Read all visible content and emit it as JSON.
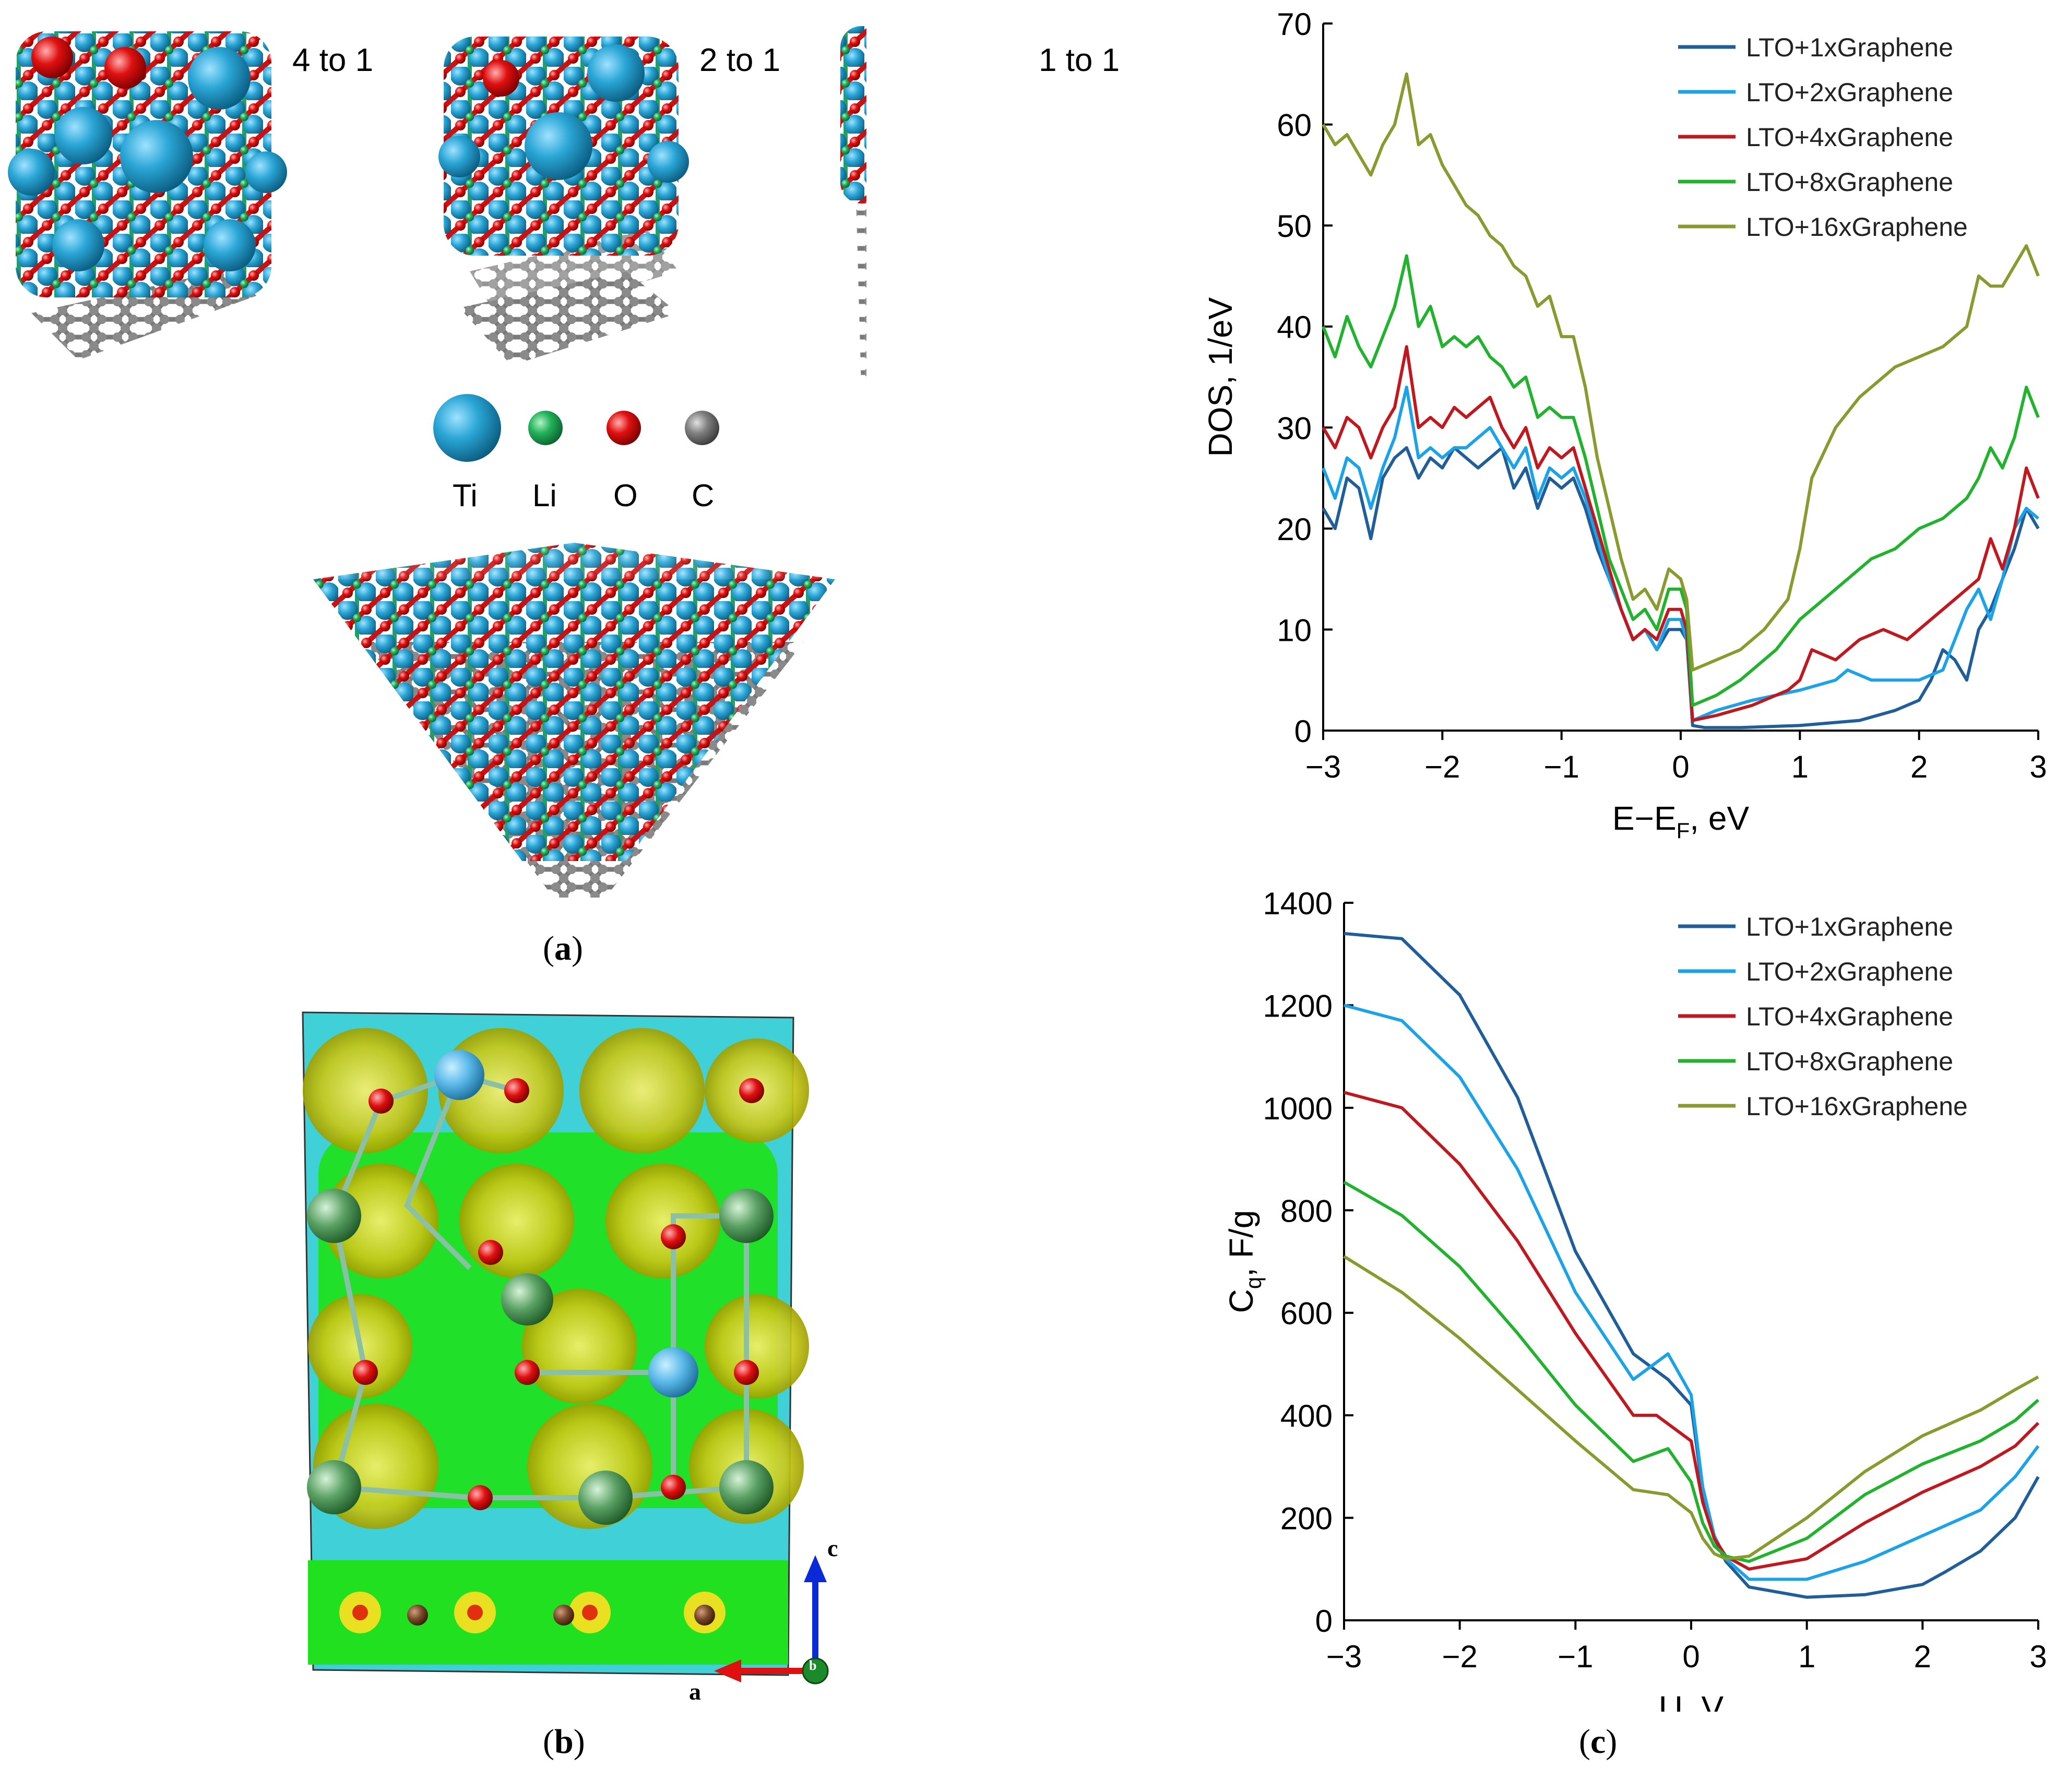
{
  "figure": {
    "panel_a": {
      "caption_prefix": "(",
      "caption_letter": "a",
      "caption_suffix": ")",
      "ratio_labels": [
        "4 to 1",
        "2 to 1",
        "1 to 1"
      ],
      "legend": [
        {
          "symbol": "Ti",
          "color": "#2aa6d6"
        },
        {
          "symbol": "Li",
          "color": "#22b25a"
        },
        {
          "symbol": "O",
          "color": "#e01010"
        },
        {
          "symbol": "C",
          "color": "#808080"
        }
      ]
    },
    "panel_b": {
      "caption_prefix": "(",
      "caption_letter": "b",
      "caption_suffix": ")",
      "axis_a": "a",
      "axis_b": "b",
      "axis_c": "c"
    },
    "panel_c": {
      "caption_prefix": "(",
      "caption_letter": "c",
      "caption_suffix": ")"
    }
  },
  "chart_data": [
    {
      "id": "dos",
      "type": "line",
      "xlabel": "E−E_F, eV",
      "xlabel_main": "E−E",
      "xlabel_sub": "F",
      "xlabel_tail": ", eV",
      "ylabel": "DOS, 1/eV",
      "xlim": [
        -3,
        3
      ],
      "ylim": [
        0,
        70
      ],
      "xticks": [
        -3,
        -2,
        -1,
        0,
        1,
        2,
        3
      ],
      "xtick_labels": [
        "−3",
        "−2",
        "−1",
        "0",
        "1",
        "2",
        "3"
      ],
      "yticks": [
        0,
        10,
        20,
        30,
        40,
        50,
        60,
        70
      ],
      "ytick_labels": [
        "0",
        "10",
        "20",
        "30",
        "40",
        "50",
        "60",
        "70"
      ],
      "legend_position": "top-right",
      "series": [
        {
          "name": "LTO+1xGraphene",
          "color": "#1f5e99",
          "x": [
            -3,
            -2.9,
            -2.8,
            -2.7,
            -2.6,
            -2.5,
            -2.4,
            -2.3,
            -2.2,
            -2.1,
            -2,
            -1.9,
            -1.8,
            -1.7,
            -1.6,
            -1.5,
            -1.4,
            -1.3,
            -1.2,
            -1.1,
            -1,
            -0.9,
            -0.8,
            -0.7,
            -0.6,
            -0.5,
            -0.4,
            -0.3,
            -0.2,
            -0.1,
            0,
            0.05,
            0.1,
            0.2,
            0.5,
            1,
            1.5,
            1.8,
            2,
            2.1,
            2.2,
            2.3,
            2.4,
            2.5,
            2.6,
            2.7,
            2.8,
            2.9,
            3
          ],
          "y": [
            22,
            20,
            25,
            24,
            19,
            25,
            27,
            28,
            25,
            27,
            26,
            28,
            27,
            26,
            27,
            28,
            24,
            26,
            22,
            25,
            24,
            25,
            22,
            18,
            15,
            12,
            9,
            10,
            8,
            10,
            10,
            9,
            0.5,
            0.3,
            0.3,
            0.5,
            1,
            2,
            3,
            5,
            8,
            7,
            5,
            10,
            12,
            15,
            18,
            22,
            20
          ]
        },
        {
          "name": "LTO+2xGraphene",
          "color": "#1aa3e8",
          "x": [
            -3,
            -2.9,
            -2.8,
            -2.7,
            -2.6,
            -2.5,
            -2.4,
            -2.3,
            -2.2,
            -2.1,
            -2,
            -1.9,
            -1.8,
            -1.7,
            -1.6,
            -1.5,
            -1.4,
            -1.3,
            -1.2,
            -1.1,
            -1,
            -0.9,
            -0.8,
            -0.7,
            -0.6,
            -0.5,
            -0.4,
            -0.3,
            -0.2,
            -0.1,
            0,
            0.05,
            0.1,
            0.3,
            0.6,
            1,
            1.3,
            1.4,
            1.6,
            1.8,
            2,
            2.2,
            2.3,
            2.4,
            2.5,
            2.6,
            2.7,
            2.8,
            2.9,
            3
          ],
          "y": [
            26,
            23,
            27,
            26,
            22,
            26,
            29,
            34,
            27,
            28,
            27,
            28,
            28,
            29,
            30,
            28,
            26,
            28,
            23,
            26,
            25,
            26,
            23,
            19,
            15,
            12,
            9,
            10,
            8,
            11,
            11,
            9,
            1,
            2,
            3,
            4,
            5,
            6,
            5,
            5,
            5,
            6,
            9,
            12,
            14,
            11,
            15,
            20,
            22,
            21
          ]
        },
        {
          "name": "LTO+4xGraphene",
          "color": "#c0181e",
          "x": [
            -3,
            -2.9,
            -2.8,
            -2.7,
            -2.6,
            -2.5,
            -2.4,
            -2.3,
            -2.2,
            -2.1,
            -2,
            -1.9,
            -1.8,
            -1.7,
            -1.6,
            -1.5,
            -1.4,
            -1.3,
            -1.2,
            -1.1,
            -1,
            -0.9,
            -0.8,
            -0.7,
            -0.6,
            -0.5,
            -0.4,
            -0.3,
            -0.2,
            -0.1,
            0,
            0.05,
            0.1,
            0.3,
            0.6,
            0.9,
            1,
            1.1,
            1.3,
            1.5,
            1.7,
            1.9,
            2.1,
            2.3,
            2.5,
            2.6,
            2.7,
            2.8,
            2.9,
            3
          ],
          "y": [
            30,
            28,
            31,
            30,
            27,
            30,
            32,
            38,
            30,
            31,
            30,
            32,
            31,
            32,
            33,
            30,
            28,
            30,
            26,
            28,
            27,
            28,
            24,
            20,
            16,
            12,
            9,
            10,
            9,
            12,
            12,
            10,
            1,
            1.5,
            2.5,
            4,
            5,
            8,
            7,
            9,
            10,
            9,
            11,
            13,
            15,
            19,
            16,
            20,
            26,
            23
          ]
        },
        {
          "name": "LTO+8xGraphene",
          "color": "#22b32e",
          "x": [
            -3,
            -2.9,
            -2.8,
            -2.7,
            -2.6,
            -2.5,
            -2.4,
            -2.3,
            -2.2,
            -2.1,
            -2,
            -1.9,
            -1.8,
            -1.7,
            -1.6,
            -1.5,
            -1.4,
            -1.3,
            -1.2,
            -1.1,
            -1,
            -0.9,
            -0.8,
            -0.7,
            -0.6,
            -0.5,
            -0.4,
            -0.3,
            -0.2,
            -0.1,
            0,
            0.05,
            0.1,
            0.3,
            0.5,
            0.8,
            1,
            1.2,
            1.4,
            1.6,
            1.8,
            2,
            2.2,
            2.4,
            2.5,
            2.6,
            2.7,
            2.8,
            2.9,
            3
          ],
          "y": [
            40,
            37,
            41,
            38,
            36,
            39,
            42,
            47,
            40,
            42,
            38,
            39,
            38,
            39,
            37,
            36,
            34,
            35,
            31,
            32,
            31,
            31,
            27,
            22,
            17,
            14,
            11,
            12,
            10,
            14,
            14,
            12,
            2.5,
            3.5,
            5,
            8,
            11,
            13,
            15,
            17,
            18,
            20,
            21,
            23,
            25,
            28,
            26,
            29,
            34,
            31
          ]
        },
        {
          "name": "LTO+16xGraphene",
          "color": "#8a9a2e",
          "x": [
            -3,
            -2.9,
            -2.8,
            -2.7,
            -2.6,
            -2.5,
            -2.4,
            -2.3,
            -2.2,
            -2.1,
            -2,
            -1.9,
            -1.8,
            -1.7,
            -1.6,
            -1.5,
            -1.4,
            -1.3,
            -1.2,
            -1.1,
            -1,
            -0.9,
            -0.8,
            -0.7,
            -0.6,
            -0.5,
            -0.4,
            -0.3,
            -0.2,
            -0.1,
            0,
            0.05,
            0.1,
            0.3,
            0.5,
            0.7,
            0.9,
            1,
            1.1,
            1.3,
            1.5,
            1.8,
            2,
            2.2,
            2.4,
            2.5,
            2.6,
            2.7,
            2.8,
            2.9,
            3
          ],
          "y": [
            60,
            58,
            59,
            57,
            55,
            58,
            60,
            65,
            58,
            59,
            56,
            54,
            52,
            51,
            49,
            48,
            46,
            45,
            42,
            43,
            39,
            39,
            34,
            27,
            22,
            17,
            13,
            14,
            12,
            16,
            15,
            13,
            6,
            7,
            8,
            10,
            13,
            18,
            25,
            30,
            33,
            36,
            37,
            38,
            40,
            45,
            44,
            44,
            46,
            48,
            45
          ]
        }
      ]
    },
    {
      "id": "cq",
      "type": "line",
      "xlabel": "U, V",
      "ylabel": "C_q, F/g",
      "ylabel_main": "C",
      "ylabel_sub": "q",
      "ylabel_tail": ", F/g",
      "xlim": [
        -3,
        3
      ],
      "ylim": [
        0,
        1400
      ],
      "xticks": [
        -3,
        -2,
        -1,
        0,
        1,
        2,
        3
      ],
      "xtick_labels": [
        "−3",
        "−2",
        "−1",
        "0",
        "1",
        "2",
        "3"
      ],
      "yticks": [
        0,
        200,
        400,
        600,
        800,
        1000,
        1200,
        1400
      ],
      "ytick_labels": [
        "0",
        "200",
        "400",
        "600",
        "800",
        "1000",
        "1200",
        "1400"
      ],
      "legend_position": "top-right",
      "series": [
        {
          "name": "LTO+1xGraphene",
          "color": "#1f5e99",
          "x": [
            -3,
            -2.5,
            -2,
            -1.5,
            -1,
            -0.5,
            -0.2,
            0,
            0.1,
            0.2,
            0.3,
            0.5,
            1,
            1.5,
            2,
            2.2,
            2.5,
            2.8,
            3
          ],
          "y": [
            1340,
            1330,
            1220,
            1020,
            720,
            520,
            470,
            420,
            250,
            160,
            115,
            65,
            45,
            50,
            70,
            95,
            135,
            200,
            280
          ]
        },
        {
          "name": "LTO+2xGraphene",
          "color": "#1aa3e8",
          "x": [
            -3,
            -2.5,
            -2,
            -1.5,
            -1,
            -0.5,
            -0.2,
            0,
            0.1,
            0.2,
            0.3,
            0.5,
            1,
            1.5,
            2,
            2.5,
            2.8,
            3
          ],
          "y": [
            1200,
            1170,
            1060,
            880,
            640,
            470,
            520,
            440,
            260,
            165,
            120,
            80,
            80,
            115,
            165,
            215,
            280,
            340
          ]
        },
        {
          "name": "LTO+4xGraphene",
          "color": "#c0181e",
          "x": [
            -3,
            -2.5,
            -2,
            -1.5,
            -1,
            -0.5,
            -0.3,
            0,
            0.1,
            0.2,
            0.3,
            0.5,
            1,
            1.5,
            2,
            2.5,
            2.8,
            3
          ],
          "y": [
            1030,
            1000,
            890,
            740,
            560,
            400,
            400,
            350,
            230,
            160,
            125,
            100,
            120,
            190,
            250,
            300,
            340,
            385
          ]
        },
        {
          "name": "LTO+8xGraphene",
          "color": "#22b32e",
          "x": [
            -3,
            -2.5,
            -2,
            -1.5,
            -1,
            -0.5,
            -0.2,
            0,
            0.1,
            0.2,
            0.3,
            0.5,
            1,
            1.5,
            2,
            2.5,
            2.8,
            3
          ],
          "y": [
            855,
            790,
            690,
            560,
            420,
            310,
            335,
            270,
            190,
            145,
            125,
            115,
            160,
            245,
            305,
            350,
            390,
            430
          ]
        },
        {
          "name": "LTO+16xGraphene",
          "color": "#8a9a2e",
          "x": [
            -3,
            -2.5,
            -2,
            -1.5,
            -1,
            -0.5,
            -0.2,
            0,
            0.1,
            0.2,
            0.3,
            0.5,
            1,
            1.5,
            2,
            2.5,
            2.8,
            3
          ],
          "y": [
            710,
            640,
            550,
            450,
            350,
            255,
            245,
            210,
            160,
            130,
            120,
            125,
            200,
            290,
            360,
            410,
            450,
            475
          ]
        }
      ]
    }
  ]
}
